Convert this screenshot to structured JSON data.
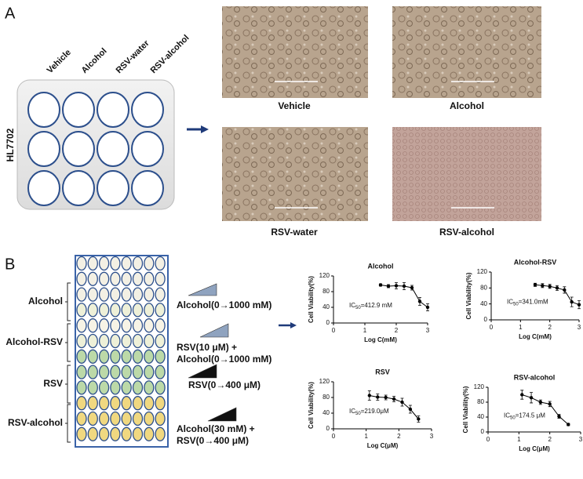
{
  "panel_a": {
    "label": "A",
    "cell_line": "HL7702",
    "columns": [
      "Vehicle",
      "Alcohol",
      "RSV-water",
      "RSV-alcohol"
    ],
    "captions": [
      "Vehicle",
      "Alcohol",
      "RSV-water",
      "RSV-alcohol"
    ]
  },
  "panel_b": {
    "label": "B",
    "groups": [
      "Alcohol",
      "Alcohol-RSV",
      "RSV",
      "RSV-alcohol"
    ],
    "treatments": [
      [
        "Alcohol(0→1000 mM)"
      ],
      [
        "RSV(10 μM) +",
        "Alcohol(0→1000 mM)"
      ],
      [
        "RSV(0→400 μM)"
      ],
      [
        "Alcohol(30 mM) +",
        "RSV(0→400 μM)"
      ]
    ]
  },
  "chart_data": [
    {
      "type": "line",
      "title": "Alcohol",
      "xlabel": "Log C(mM)",
      "ylabel": "Cell Viability(%)",
      "x": [
        1.5,
        1.75,
        2.0,
        2.25,
        2.5,
        2.75,
        3.0
      ],
      "values": [
        97,
        94,
        95,
        94,
        90,
        55,
        40
      ],
      "errors": [
        3,
        4,
        8,
        9,
        6,
        10,
        9
      ],
      "xlim": [
        0,
        3
      ],
      "ylim": [
        0,
        120
      ],
      "xticks": [
        0,
        1,
        2,
        3
      ],
      "yticks": [
        0,
        40,
        80,
        120
      ],
      "annotation": {
        "prefix": "IC",
        "sub": "50",
        "text": "=412.9 mM"
      },
      "color": "#000000"
    },
    {
      "type": "line",
      "title": "Alcohol-RSV",
      "xlabel": "Log C(mM)",
      "ylabel": "Cell Viability(%)",
      "x": [
        1.5,
        1.75,
        2.0,
        2.25,
        2.5,
        2.75,
        3.0
      ],
      "values": [
        88,
        86,
        84,
        80,
        75,
        45,
        38
      ],
      "errors": [
        4,
        5,
        5,
        6,
        8,
        12,
        10
      ],
      "xlim": [
        0,
        3
      ],
      "ylim": [
        0,
        120
      ],
      "xticks": [
        0,
        1,
        2,
        3
      ],
      "yticks": [
        0,
        40,
        80,
        120
      ],
      "annotation": {
        "prefix": "IC",
        "sub": "50",
        "text": "=341.0mM"
      },
      "color": "#000000"
    },
    {
      "type": "line",
      "title": "RSV",
      "xlabel": "Log C(μM)",
      "ylabel": "Cell Viability(%)",
      "x": [
        1.1,
        1.35,
        1.6,
        1.85,
        2.1,
        2.35,
        2.6
      ],
      "values": [
        85,
        81,
        80,
        76,
        68,
        50,
        25
      ],
      "errors": [
        12,
        8,
        6,
        7,
        10,
        10,
        8
      ],
      "xlim": [
        0,
        3
      ],
      "ylim": [
        0,
        120
      ],
      "xticks": [
        0,
        1,
        2,
        3
      ],
      "yticks": [
        0,
        40,
        80,
        120
      ],
      "annotation": {
        "prefix": "IC",
        "sub": "50",
        "text": "=219.0μM"
      },
      "color": "#000000"
    },
    {
      "type": "line",
      "title": "RSV-alcohol",
      "xlabel": "Log C(μM)",
      "ylabel": "Cell Viability(%)",
      "x": [
        1.1,
        1.4,
        1.7,
        2.0,
        2.3,
        2.6
      ],
      "values": [
        100,
        92,
        80,
        75,
        42,
        20
      ],
      "errors": [
        12,
        14,
        6,
        7,
        5,
        3
      ],
      "xlim": [
        0,
        3
      ],
      "ylim": [
        0,
        120
      ],
      "xticks": [
        0,
        1,
        2,
        3
      ],
      "yticks": [
        0,
        40,
        80,
        120
      ],
      "annotation": {
        "prefix": "IC",
        "sub": "50",
        "text": "=174.5 μM"
      },
      "color": "#000000"
    }
  ]
}
